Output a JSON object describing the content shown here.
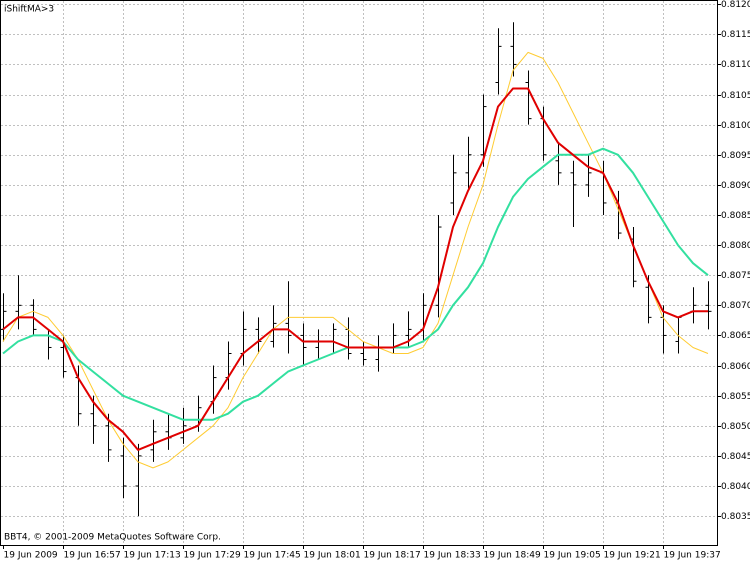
{
  "chart_data": {
    "type": "ohlc",
    "title": "iShiftMA>3",
    "annotation": "BBT4, © 2001-2009 MetaQuotes Software Corp.",
    "categories": [
      "19 Jun 2009",
      null,
      null,
      null,
      "19 Jun 16:57",
      null,
      null,
      null,
      "19 Jun 17:13",
      null,
      null,
      null,
      "19 Jun 17:29",
      null,
      null,
      null,
      "19 Jun 17:45",
      null,
      null,
      null,
      "19 Jun 18:01",
      null,
      null,
      null,
      "19 Jun 18:17",
      null,
      null,
      null,
      "19 Jun 18:33",
      null,
      null,
      null,
      "19 Jun 18:49",
      null,
      null,
      null,
      "19 Jun 19:05",
      null,
      null,
      null,
      "19 Jun 19:21",
      null,
      null,
      null,
      "19 Jun 19:37",
      null,
      null,
      null
    ],
    "open": [
      0.8066,
      0.8069,
      0.807,
      0.8065,
      0.8063,
      0.8058,
      0.8052,
      0.805,
      0.8045,
      0.804,
      0.8046,
      0.8049,
      0.8048,
      0.805,
      0.8054,
      0.8058,
      0.8062,
      0.8066,
      0.8064,
      0.8067,
      0.8065,
      0.8063,
      0.8064,
      0.8066,
      0.8062,
      0.8061,
      0.8063,
      0.8065,
      0.8066,
      0.807,
      0.8087,
      0.8092,
      0.8095,
      0.8107,
      0.8113,
      0.8107,
      0.8101,
      0.8094,
      0.8092,
      0.809,
      0.8092,
      0.8087,
      0.8081,
      0.8073,
      0.8068,
      0.8064,
      0.8069,
      0.807
    ],
    "high": [
      0.8072,
      0.8075,
      0.8071,
      0.8066,
      0.8065,
      0.806,
      0.8055,
      0.8052,
      0.8048,
      0.8047,
      0.8051,
      0.8052,
      0.8053,
      0.8055,
      0.806,
      0.8064,
      0.8069,
      0.8068,
      0.807,
      0.8074,
      0.8067,
      0.8066,
      0.8067,
      0.8068,
      0.8064,
      0.8065,
      0.8067,
      0.8069,
      0.8072,
      0.8085,
      0.8095,
      0.8098,
      0.8105,
      0.8116,
      0.8117,
      0.8109,
      0.8103,
      0.8097,
      0.8094,
      0.8095,
      0.8094,
      0.8089,
      0.8083,
      0.8075,
      0.807,
      0.8068,
      0.8073,
      0.8074
    ],
    "low": [
      0.8064,
      0.8066,
      0.8065,
      0.8061,
      0.8058,
      0.805,
      0.8047,
      0.8044,
      0.8038,
      0.8035,
      0.8044,
      0.8046,
      0.8047,
      0.8049,
      0.8052,
      0.8056,
      0.806,
      0.8062,
      0.8063,
      0.8062,
      0.806,
      0.8061,
      0.8062,
      0.8061,
      0.806,
      0.8059,
      0.8062,
      0.8063,
      0.8064,
      0.8068,
      0.8085,
      0.8089,
      0.8093,
      0.8105,
      0.8108,
      0.81,
      0.8094,
      0.809,
      0.8083,
      0.8088,
      0.8085,
      0.8081,
      0.8073,
      0.8067,
      0.8062,
      0.8062,
      0.8067,
      0.8066
    ],
    "close": [
      0.8069,
      0.807,
      0.8066,
      0.8063,
      0.8059,
      0.8052,
      0.805,
      0.8046,
      0.804,
      0.8045,
      0.8049,
      0.8048,
      0.805,
      0.8053,
      0.8058,
      0.8062,
      0.8066,
      0.8064,
      0.8067,
      0.8065,
      0.8063,
      0.8064,
      0.8066,
      0.8062,
      0.8061,
      0.8063,
      0.8065,
      0.8066,
      0.807,
      0.8083,
      0.8092,
      0.8095,
      0.8103,
      0.8113,
      0.811,
      0.8101,
      0.8095,
      0.8092,
      0.809,
      0.8092,
      0.8087,
      0.8082,
      0.8074,
      0.8068,
      0.8065,
      0.8068,
      0.807,
      0.8069
    ],
    "series": [
      {
        "color": "#ffcc33",
        "values": [
          0.8064,
          0.8068,
          0.8069,
          0.8068,
          0.8065,
          0.8061,
          0.8056,
          0.8051,
          0.8047,
          0.8044,
          0.8043,
          0.8044,
          0.8046,
          0.8048,
          0.805,
          0.8053,
          0.8058,
          0.8062,
          0.8066,
          0.8068,
          0.8068,
          0.8068,
          0.8068,
          0.8066,
          0.8064,
          0.8063,
          0.8062,
          0.8062,
          0.8063,
          0.8067,
          0.8075,
          0.8083,
          0.809,
          0.81,
          0.8109,
          0.8112,
          0.8111,
          0.8107,
          0.8102,
          0.8097,
          0.8092,
          0.8086,
          0.808,
          0.8074,
          0.8068,
          0.8065,
          0.8063,
          0.8062
        ]
      },
      {
        "color": "#33e0a0",
        "values": [
          0.8062,
          0.8064,
          0.8065,
          0.8065,
          0.8064,
          0.8061,
          0.8059,
          0.8057,
          0.8055,
          0.8054,
          0.8053,
          0.8052,
          0.8051,
          0.8051,
          0.8051,
          0.8052,
          0.8054,
          0.8055,
          0.8057,
          0.8059,
          0.806,
          0.8061,
          0.8062,
          0.8063,
          0.8063,
          0.8063,
          0.8063,
          0.8063,
          0.8064,
          0.8066,
          0.807,
          0.8073,
          0.8077,
          0.8083,
          0.8088,
          0.8091,
          0.8093,
          0.8095,
          0.8095,
          0.8095,
          0.8096,
          0.8095,
          0.8092,
          0.8088,
          0.8084,
          0.808,
          0.8077,
          0.8075
        ]
      },
      {
        "color": "#e00000",
        "values": [
          0.8066,
          0.8068,
          0.8068,
          0.8066,
          0.8064,
          0.8058,
          0.8054,
          0.8051,
          0.8049,
          0.8046,
          0.8047,
          0.8048,
          0.8049,
          0.805,
          0.8054,
          0.8058,
          0.8062,
          0.8064,
          0.8066,
          0.8066,
          0.8064,
          0.8064,
          0.8064,
          0.8063,
          0.8063,
          0.8063,
          0.8063,
          0.8064,
          0.8066,
          0.8073,
          0.8083,
          0.8089,
          0.8094,
          0.8103,
          0.8106,
          0.8106,
          0.8101,
          0.8097,
          0.8095,
          0.8093,
          0.8092,
          0.8087,
          0.808,
          0.8074,
          0.8069,
          0.8068,
          0.8069,
          0.8069
        ]
      }
    ],
    "ylim": [
      0.80302,
      0.81207
    ],
    "yticks": [
      0.8035,
      {
        "value": 0.804,
        "label": "0.8040"
      },
      0.8045,
      {
        "value": 0.805,
        "label": "0.8050"
      },
      0.8055,
      {
        "value": 0.806,
        "label": "0.8060"
      },
      0.8065,
      {
        "value": 0.807,
        "label": "0.8070"
      },
      0.8075,
      {
        "value": 0.808,
        "label": "0.8080"
      },
      0.8085,
      {
        "value": 0.809,
        "label": "0.8090"
      },
      0.8095,
      {
        "value": 0.81,
        "label": "0.8100"
      },
      0.8105,
      {
        "value": 0.811,
        "label": "0.8110"
      },
      0.8115,
      {
        "value": 0.812,
        "label": "0.8120"
      }
    ],
    "grid": true
  }
}
